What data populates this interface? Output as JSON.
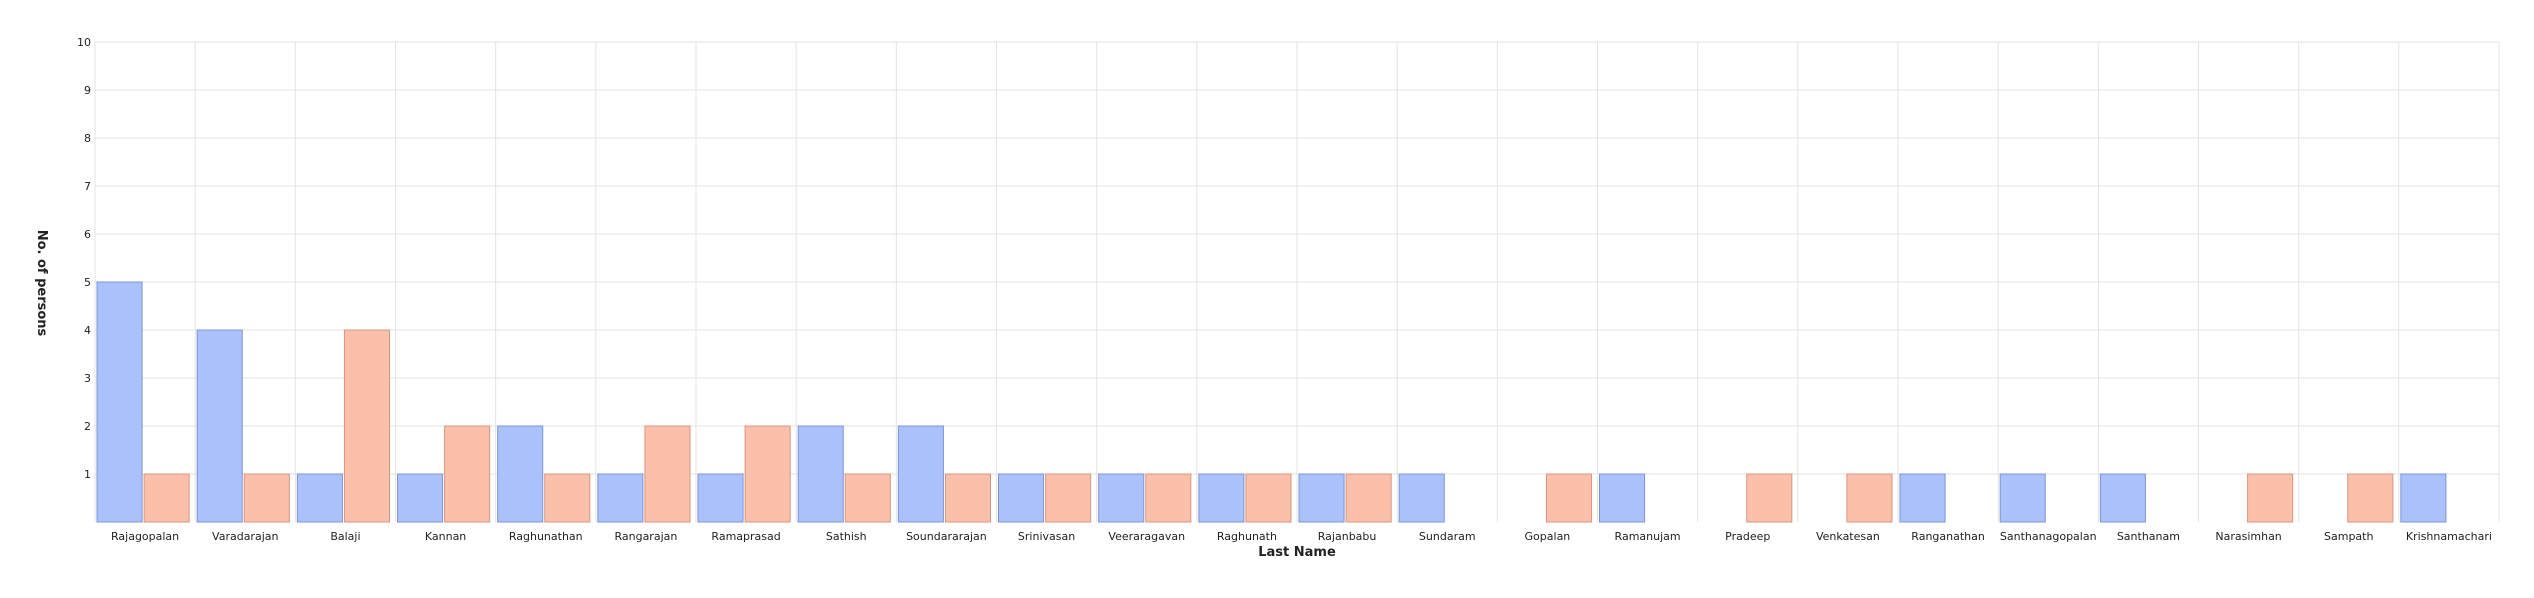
{
  "chart_data": {
    "type": "bar",
    "title": "",
    "xlabel": "Last Name",
    "ylabel": "No. of persons",
    "ylim": [
      0,
      10
    ],
    "yticks": [
      1,
      2,
      3,
      4,
      5,
      6,
      7,
      8,
      9,
      10
    ],
    "grid": true,
    "legend": "none",
    "categories": [
      "Rajagopalan",
      "Varadarajan",
      "Balaji",
      "Kannan",
      "Raghunathan",
      "Rangarajan",
      "Ramaprasad",
      "Sathish",
      "Soundararajan",
      "Srinivasan",
      "Veeraragavan",
      "Raghunath",
      "Rajanbabu",
      "Sundaram",
      "Gopalan",
      "Ramanujam",
      "Pradeep",
      "Venkatesan",
      "Ranganathan",
      "Santhanagopalan",
      "Santhanam",
      "Narasimhan",
      "Sampath",
      "Krishnamachari"
    ],
    "series": [
      {
        "color": "#abc1fb",
        "stroke": "#7f94d6",
        "values": [
          5,
          4,
          1,
          1,
          2,
          1,
          1,
          2,
          2,
          1,
          1,
          1,
          1,
          1,
          0,
          1,
          0,
          0,
          1,
          1,
          1,
          0,
          0,
          1
        ]
      },
      {
        "color": "#fbc0aa",
        "stroke": "#d99580",
        "values": [
          1,
          1,
          4,
          2,
          1,
          2,
          2,
          1,
          1,
          1,
          1,
          1,
          1,
          0,
          1,
          0,
          1,
          1,
          0,
          0,
          0,
          1,
          1,
          0
        ]
      }
    ]
  }
}
